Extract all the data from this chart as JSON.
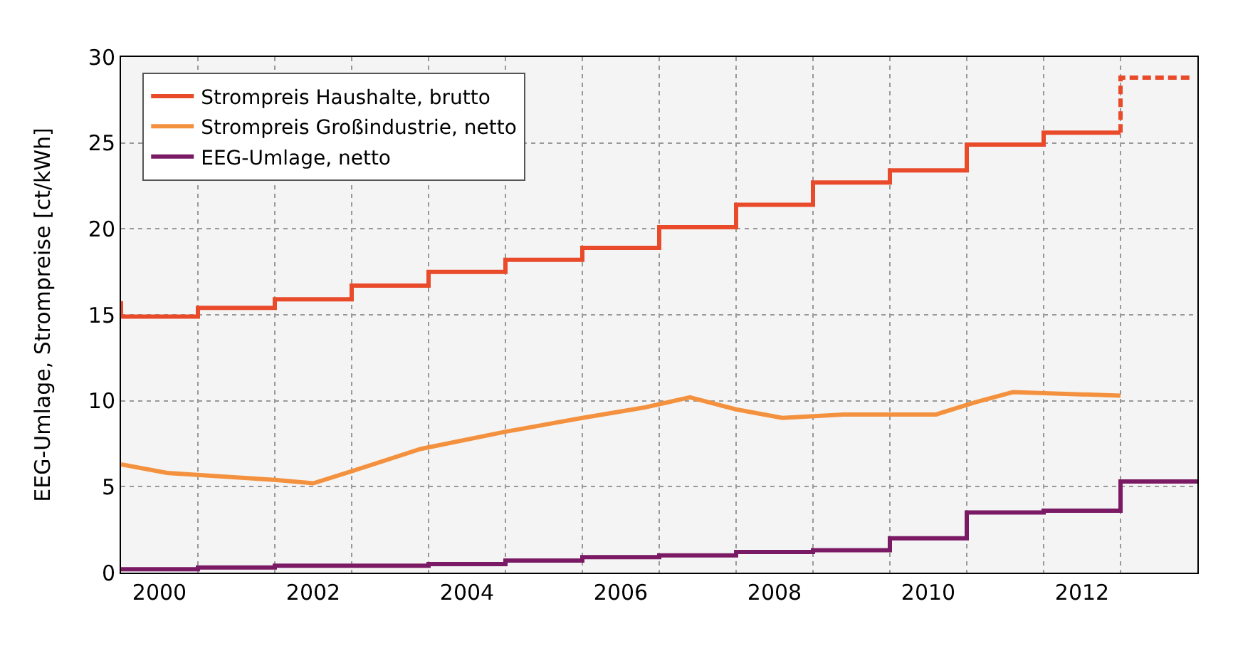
{
  "chart_data": {
    "type": "step",
    "ylabel": "EEG-Umlage, Strompreise [ct/kWh]",
    "xlim": [
      2000,
      2014
    ],
    "ylim": [
      0,
      30
    ],
    "xticks": [
      {
        "value": 2000.5,
        "label": "2000"
      },
      {
        "value": 2002.5,
        "label": "2002"
      },
      {
        "value": 2004.5,
        "label": "2004"
      },
      {
        "value": 2006.5,
        "label": "2006"
      },
      {
        "value": 2008.5,
        "label": "2008"
      },
      {
        "value": 2010.5,
        "label": "2010"
      },
      {
        "value": 2012.5,
        "label": "2012"
      },
      {
        "value": 2001,
        "label": null
      },
      {
        "value": 2002,
        "label": null
      },
      {
        "value": 2003,
        "label": null
      },
      {
        "value": 2004,
        "label": null
      },
      {
        "value": 2005,
        "label": null
      },
      {
        "value": 2006,
        "label": null
      },
      {
        "value": 2007,
        "label": null
      },
      {
        "value": 2008,
        "label": null
      },
      {
        "value": 2009,
        "label": null
      },
      {
        "value": 2010,
        "label": null
      },
      {
        "value": 2011,
        "label": null
      },
      {
        "value": 2012,
        "label": null
      },
      {
        "value": 2013,
        "label": null
      }
    ],
    "yticks": [
      0,
      5,
      10,
      15,
      20,
      25,
      30
    ],
    "grid": true,
    "legend": "top left",
    "series": [
      {
        "name": "Strompreis Haushalte, brutto",
        "color": "#e84a2a",
        "x": [
          2000,
          2000,
          2001,
          2002,
          2003,
          2004,
          2005,
          2006,
          2007,
          2008,
          2009,
          2010,
          2011,
          2012,
          2013
        ],
        "values": [
          15.8,
          14.9,
          15.4,
          15.9,
          16.7,
          17.5,
          18.2,
          18.9,
          20.1,
          21.4,
          22.7,
          23.4,
          24.9,
          25.6,
          25.6
        ]
      },
      {
        "color": "#e84a2a",
        "type": "line",
        "line_style": "dashed",
        "x": [
          2013,
          2013,
          2013.9
        ],
        "values": [
          25.6,
          28.8,
          28.8
        ]
      },
      {
        "name": "Strompreis Großindustrie, netto",
        "color": "#f4913e",
        "type": "line",
        "x": [
          2000,
          2000.6,
          2002,
          2002.5,
          2003,
          2003.9,
          2005,
          2006,
          2006.8,
          2007,
          2007.4,
          2008,
          2008.6,
          2009.4,
          2010.6,
          2011.1,
          2011.6,
          2013
        ],
        "values": [
          6.3,
          5.8,
          5.4,
          5.2,
          5.9,
          7.2,
          8.2,
          9.0,
          9.6,
          9.8,
          10.2,
          9.5,
          9.0,
          9.2,
          9.2,
          9.9,
          10.5,
          10.3
        ]
      },
      {
        "name": "EEG-Umlage, netto",
        "color": "#7b1a64",
        "x": [
          2000,
          2001,
          2002,
          2003,
          2004,
          2005,
          2006,
          2007,
          2008,
          2009,
          2010,
          2011,
          2012,
          2013,
          2014
        ],
        "values": [
          0.2,
          0.3,
          0.4,
          0.4,
          0.5,
          0.7,
          0.9,
          1.0,
          1.2,
          1.3,
          2.0,
          3.5,
          3.6,
          5.3,
          5.3
        ]
      }
    ]
  }
}
